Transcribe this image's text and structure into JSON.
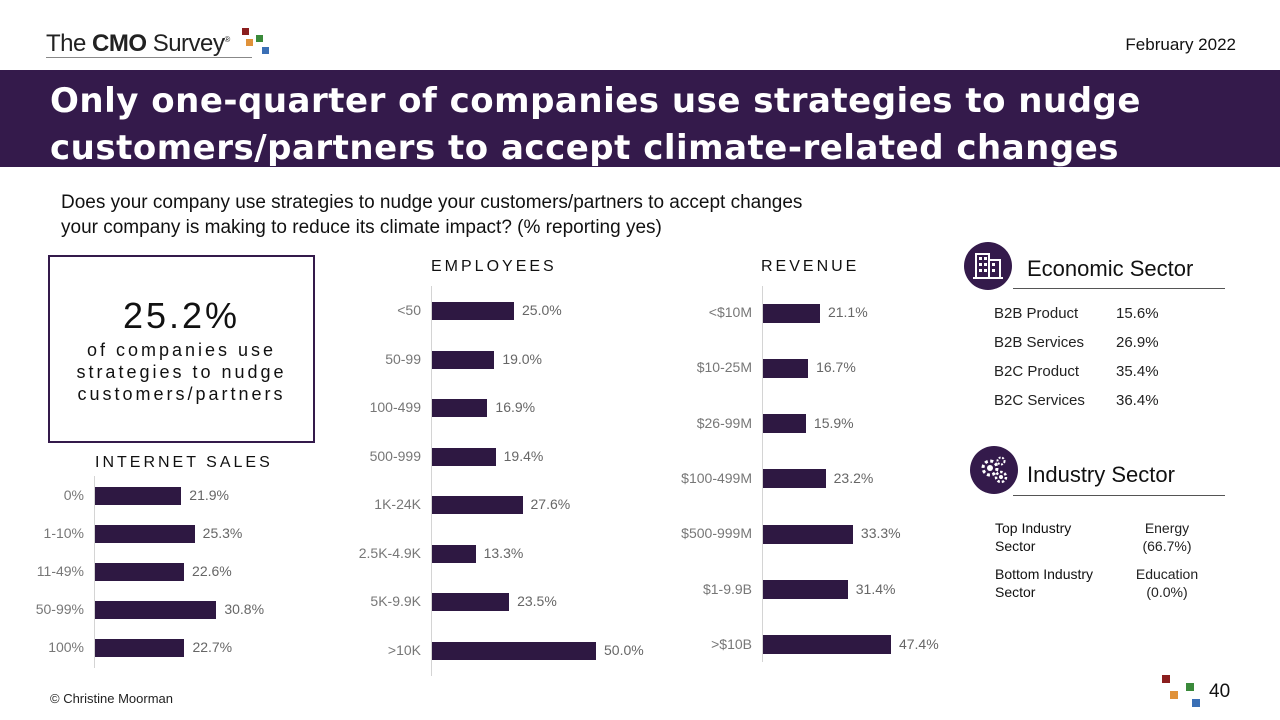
{
  "header": {
    "logo_prefix": "The",
    "logo_bold": "CMO",
    "logo_suffix": "Survey",
    "logo_mark": "®",
    "date": "February 2022"
  },
  "title": {
    "line1": "Only one-quarter of companies use strategies to nudge",
    "line2": "customers/partners to accept climate-related changes"
  },
  "question": {
    "line1": "Does your company use strategies to nudge your customers/partners to accept changes",
    "line2": "your company is making to reduce its climate impact? (% reporting yes)"
  },
  "kpi": {
    "value": "25.2%",
    "line1": "of companies use",
    "line2": "strategies to nudge",
    "line3": "customers/partners"
  },
  "chart_data": [
    {
      "type": "bar",
      "orientation": "horizontal",
      "title": "INTERNET SALES",
      "categories": [
        "0%",
        "1-10%",
        "11-49%",
        "50-99%",
        "100%"
      ],
      "values": [
        21.9,
        25.3,
        22.6,
        30.8,
        22.7
      ],
      "labels": [
        "21.9%",
        "25.3%",
        "22.6%",
        "30.8%",
        "22.7%"
      ],
      "xlim": [
        0,
        100
      ],
      "color": "#2e1842"
    },
    {
      "type": "bar",
      "orientation": "horizontal",
      "title": "EMPLOYEES",
      "categories": [
        "<50",
        "50-99",
        "100-499",
        "500-999",
        "1K-24K",
        "2.5K-4.9K",
        "5K-9.9K",
        ">10K"
      ],
      "values": [
        25.0,
        19.0,
        16.9,
        19.4,
        27.6,
        13.3,
        23.5,
        50.0
      ],
      "labels": [
        "25.0%",
        "19.0%",
        "16.9%",
        "19.4%",
        "27.6%",
        "13.3%",
        "23.5%",
        "50.0%"
      ],
      "xlim": [
        0,
        100
      ],
      "color": "#2e1842"
    },
    {
      "type": "bar",
      "orientation": "horizontal",
      "title": "REVENUE",
      "categories": [
        "<$10M",
        "$10-25M",
        "$26-99M",
        "$100-499M",
        "$500-999M",
        "$1-9.9B",
        ">$10B"
      ],
      "values": [
        21.1,
        16.7,
        15.9,
        23.2,
        33.3,
        31.4,
        47.4
      ],
      "labels": [
        "21.1%",
        "16.7%",
        "15.9%",
        "23.2%",
        "33.3%",
        "31.4%",
        "47.4%"
      ],
      "xlim": [
        0,
        100
      ],
      "color": "#2e1842"
    }
  ],
  "economic_sector": {
    "title": "Economic Sector",
    "icon": "office-building-icon",
    "rows": [
      {
        "name": "B2B Product",
        "value": "15.6%"
      },
      {
        "name": "B2B Services",
        "value": "26.9%"
      },
      {
        "name": "B2C Product",
        "value": "35.4%"
      },
      {
        "name": "B2C Services",
        "value": "36.4%"
      }
    ]
  },
  "industry_sector": {
    "title": "Industry Sector",
    "icon": "gears-icon",
    "top_label_1": "Top Industry",
    "top_label_2": "Sector",
    "top_value_1": "Energy",
    "top_value_2": "(66.7%)",
    "bottom_label_1": "Bottom Industry",
    "bottom_label_2": "Sector",
    "bottom_value_1": "Education",
    "bottom_value_2": "(0.0%)"
  },
  "footer": {
    "copyright": "© Christine Moorman",
    "page": "40"
  },
  "colors": {
    "banner": "#341a4b",
    "bar": "#2e1842",
    "logo_red": "#8b1e1e",
    "logo_orange": "#e0923a",
    "logo_green": "#3a8a3a",
    "logo_blue": "#3a6fb5"
  }
}
